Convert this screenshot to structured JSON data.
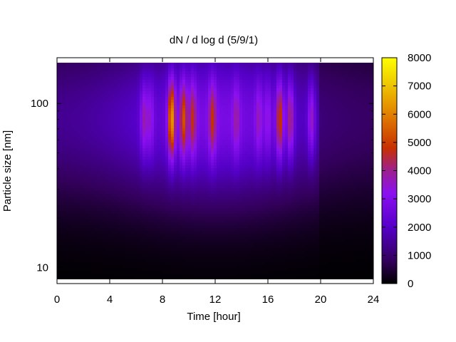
{
  "chart_data": {
    "type": "heatmap",
    "title": "dN / d log d (5/9/1)",
    "xlabel": "Time [hour]",
    "ylabel": "Particle size [nm]",
    "xlim": [
      0,
      24
    ],
    "ylim_nm": [
      8,
      190
    ],
    "y_scale": "log",
    "x_ticks": [
      0,
      4,
      8,
      12,
      16,
      20,
      24
    ],
    "x_tick_labels": [
      "0",
      "4",
      "8",
      "12",
      "16",
      "20",
      "24"
    ],
    "y_ticks": [
      10,
      100
    ],
    "y_tick_labels": [
      "10",
      "100"
    ],
    "colorbar": {
      "min": 0,
      "max": 8000,
      "ticks": [
        0,
        1000,
        2000,
        3000,
        4000,
        5000,
        6000,
        7000,
        8000
      ],
      "tick_labels": [
        "0",
        "1000",
        "2000",
        "3000",
        "4000",
        "5000",
        "6000",
        "7000",
        "8000"
      ],
      "colormap": "gnuplot"
    },
    "peak_size_nm": 80,
    "events": [
      {
        "time_h": 6.6,
        "peak": 3700
      },
      {
        "time_h": 7.1,
        "peak": 3400
      },
      {
        "time_h": 8.7,
        "peak": 6400
      },
      {
        "time_h": 9.6,
        "peak": 5300
      },
      {
        "time_h": 10.3,
        "peak": 4700
      },
      {
        "time_h": 11.8,
        "peak": 4800
      },
      {
        "time_h": 13.6,
        "peak": 3900
      },
      {
        "time_h": 15.3,
        "peak": 3700
      },
      {
        "time_h": 16.0,
        "peak": 3400
      },
      {
        "time_h": 16.9,
        "peak": 5000
      },
      {
        "time_h": 17.7,
        "peak": 4200
      },
      {
        "time_h": 19.3,
        "peak": 3600
      }
    ]
  }
}
